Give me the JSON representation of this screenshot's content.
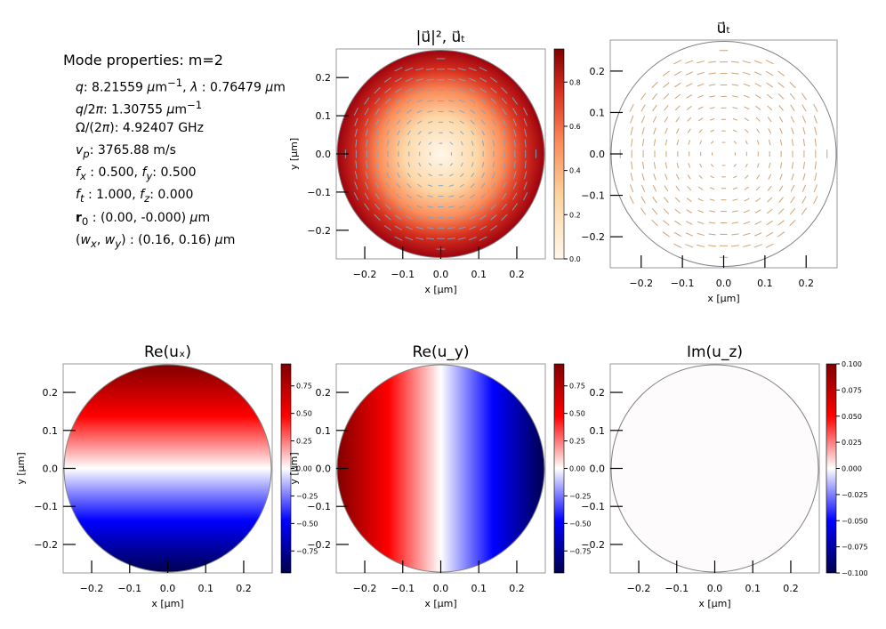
{
  "mode_properties": {
    "title": "Mode properties: m=2",
    "lines": [
      "q: 8.21559 μm⁻¹, λ:  0.76479 μm",
      "q/2π: 1.30755 μm⁻¹",
      "Ω/(2π): 4.92407 GHz",
      "vₚ: 3765.88 m/s",
      "fₓ:  0.500, f_y: 0.500",
      "fₜ:  1.000, f_z: 0.000",
      "r₀ :  (0.00, -0.000) μm",
      "(wₓ, w_y):  (0.16, 0.16) μm"
    ]
  },
  "chart_data": [
    {
      "type": "heatmap",
      "title": "|u⃗|²,  u⃗ₜ",
      "field": "|u|^2 with transverse vector overlay",
      "xlabel": "x [μm]",
      "ylabel": "y [μm]",
      "xlim": [
        -0.275,
        0.275
      ],
      "ylim": [
        -0.275,
        0.275
      ],
      "xticks": [
        "−0.2",
        "−0.1",
        "0.0",
        "0.1",
        "0.2"
      ],
      "yticks": [
        "0.2",
        "0.1",
        "0.0",
        "−0.1",
        "−0.2"
      ],
      "colormap": "OrRd",
      "colorbar": {
        "min": 0.0,
        "max": 0.95,
        "ticks": [
          "0.0",
          "0.2",
          "0.4",
          "0.6",
          "0.8"
        ]
      }
    },
    {
      "type": "quiver",
      "title": "u⃗ₜ",
      "field": "transverse displacement u_t",
      "xlabel": "x [μm]",
      "ylabel": "",
      "xlim": [
        -0.275,
        0.275
      ],
      "ylim": [
        -0.275,
        0.275
      ],
      "xticks": [
        "−0.2",
        "−0.1",
        "0.0",
        "0.1",
        "0.2"
      ],
      "yticks": [
        "0.2",
        "0.1",
        "0.0",
        "−0.1",
        "−0.2"
      ]
    },
    {
      "type": "heatmap",
      "title": "Re(uₓ)",
      "field": "Re(u_x), varies along y",
      "xlabel": "x [μm]",
      "ylabel": "y [μm]",
      "xlim": [
        -0.275,
        0.275
      ],
      "ylim": [
        -0.275,
        0.275
      ],
      "xticks": [
        "−0.2",
        "−0.1",
        "0.0",
        "0.1",
        "0.2"
      ],
      "yticks": [
        "0.2",
        "0.1",
        "0.0",
        "−0.1",
        "−0.2"
      ],
      "colormap": "seismic",
      "colorbar": {
        "min": -0.95,
        "max": 0.95,
        "ticks": [
          "0.75",
          "0.50",
          "0.25",
          "0.00",
          "−0.25",
          "−0.50",
          "−0.75"
        ]
      }
    },
    {
      "type": "heatmap",
      "title": "Re(u_y)",
      "field": "Re(u_y), varies along x",
      "xlabel": "x [μm]",
      "ylabel": "y [μm]",
      "xlim": [
        -0.275,
        0.275
      ],
      "ylim": [
        -0.275,
        0.275
      ],
      "xticks": [
        "−0.2",
        "−0.1",
        "0.0",
        "0.1",
        "0.2"
      ],
      "yticks": [
        "0.2",
        "0.1",
        "0.0",
        "−0.1",
        "−0.2"
      ],
      "colormap": "seismic",
      "colorbar": {
        "min": -0.95,
        "max": 0.95,
        "ticks": [
          "0.75",
          "0.50",
          "0.25",
          "0.00",
          "−0.25",
          "−0.50",
          "−0.75"
        ]
      }
    },
    {
      "type": "heatmap",
      "title": "Im(u_z)",
      "field": "Im(u_z), uniform zero",
      "xlabel": "x [μm]",
      "ylabel": "",
      "xlim": [
        -0.275,
        0.275
      ],
      "ylim": [
        -0.275,
        0.275
      ],
      "xticks": [
        "−0.2",
        "−0.1",
        "0.0",
        "0.1",
        "0.2"
      ],
      "yticks": [
        "0.2",
        "0.1",
        "0.0",
        "−0.1",
        "−0.2"
      ],
      "colormap": "seismic",
      "colorbar": {
        "min": -0.1,
        "max": 0.1,
        "ticks": [
          "0.100",
          "0.075",
          "0.050",
          "0.025",
          "0.000",
          "−0.025",
          "−0.050",
          "−0.075",
          "−0.100"
        ]
      }
    }
  ]
}
